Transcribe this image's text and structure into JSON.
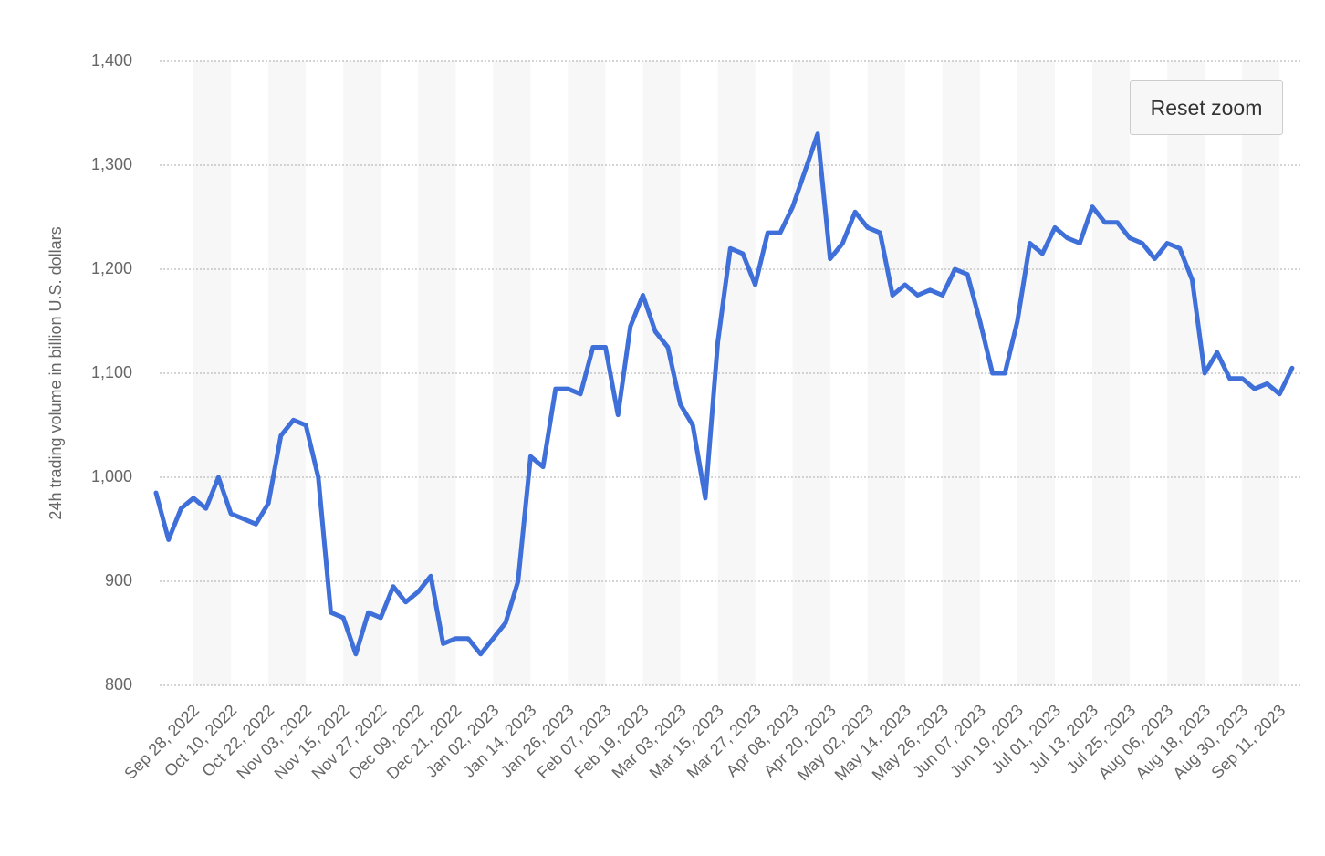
{
  "chart_data": {
    "type": "line",
    "y_axis_label": "24h trading volume in billion U.S. dollars",
    "categories": [
      null,
      null,
      null,
      "Sep 28, 2022",
      null,
      null,
      "Oct 10, 2022",
      null,
      null,
      "Oct 22, 2022",
      null,
      null,
      "Nov 03, 2022",
      null,
      null,
      "Nov 15, 2022",
      null,
      null,
      "Nov 27, 2022",
      null,
      null,
      "Dec 09, 2022",
      null,
      null,
      "Dec 21, 2022",
      null,
      null,
      "Jan 02, 2023",
      null,
      null,
      "Jan 14, 2023",
      null,
      null,
      "Jan 26, 2023",
      null,
      null,
      "Feb 07, 2023",
      null,
      null,
      "Feb 19, 2023",
      null,
      null,
      "Mar 03, 2023",
      null,
      null,
      "Mar 15, 2023",
      null,
      null,
      "Mar 27, 2023",
      null,
      null,
      "Apr 08, 2023",
      null,
      null,
      "Apr 20, 2023",
      null,
      null,
      "May 02, 2023",
      null,
      null,
      "May 14, 2023",
      null,
      null,
      "May 26, 2023",
      null,
      null,
      "Jun 07, 2023",
      null,
      null,
      "Jun 19, 2023",
      null,
      null,
      "Jul 01, 2023",
      null,
      null,
      "Jul 13, 2023",
      null,
      null,
      "Jul 25, 2023",
      null,
      null,
      "Aug 06, 2023",
      null,
      null,
      "Aug 18, 2023",
      null,
      null,
      "Aug 30, 2023",
      null,
      null,
      "Sep 11, 2023",
      null
    ],
    "series": [
      {
        "name": "24h trading volume",
        "color": "#3f6fd8",
        "values": [
          985,
          940,
          970,
          980,
          970,
          1000,
          965,
          960,
          955,
          975,
          1040,
          1055,
          1050,
          1000,
          870,
          865,
          830,
          870,
          865,
          895,
          880,
          890,
          905,
          840,
          845,
          845,
          830,
          845,
          860,
          900,
          1020,
          1010,
          1085,
          1085,
          1080,
          1125,
          1125,
          1060,
          1145,
          1175,
          1140,
          1125,
          1070,
          1050,
          980,
          1130,
          1220,
          1215,
          1185,
          1235,
          1235,
          1260,
          1295,
          1330,
          1210,
          1225,
          1255,
          1240,
          1235,
          1175,
          1185,
          1175,
          1180,
          1175,
          1200,
          1195,
          1150,
          1100,
          1100,
          1150,
          1225,
          1215,
          1240,
          1230,
          1225,
          1260,
          1245,
          1245,
          1230,
          1225,
          1210,
          1225,
          1220,
          1190,
          1100,
          1120,
          1095,
          1095,
          1085,
          1090,
          1080,
          1105
        ]
      }
    ],
    "ylim": [
      800,
      1400
    ],
    "yticks": [
      800,
      900,
      {
        "value": 1000,
        "label": "1,000"
      },
      {
        "value": 1100,
        "label": "1,100"
      },
      {
        "value": 1200,
        "label": "1,200"
      },
      {
        "value": 1300,
        "label": "1,300"
      },
      {
        "value": 1400,
        "label": "1,400"
      }
    ],
    "grid": true
  },
  "buttons": {
    "reset_zoom": "Reset zoom"
  }
}
